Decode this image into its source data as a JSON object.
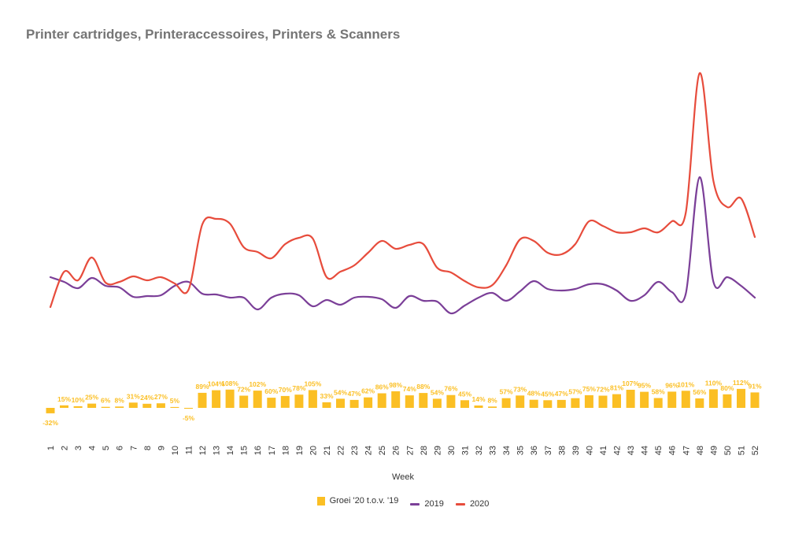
{
  "chart_data": {
    "type": "line",
    "title": "Printer cartridges, Printeraccessoires, Printers & Scanners",
    "xlabel": "Week",
    "ylabel": "",
    "categories": [
      "1",
      "2",
      "3",
      "4",
      "5",
      "6",
      "7",
      "8",
      "9",
      "10",
      "11",
      "12",
      "13",
      "14",
      "15",
      "16",
      "17",
      "18",
      "19",
      "20",
      "21",
      "22",
      "23",
      "24",
      "25",
      "26",
      "27",
      "28",
      "29",
      "30",
      "31",
      "32",
      "33",
      "34",
      "35",
      "36",
      "37",
      "38",
      "39",
      "40",
      "41",
      "42",
      "43",
      "44",
      "45",
      "46",
      "47",
      "48",
      "49",
      "50",
      "51",
      "52"
    ],
    "series": [
      {
        "name": "2019",
        "type": "line",
        "color": "#7b3f98",
        "values": [
          352,
          358,
          366,
          353,
          363,
          365,
          377,
          376,
          375,
          363,
          358,
          373,
          374,
          378,
          378,
          393,
          378,
          373,
          375,
          389,
          381,
          387,
          378,
          377,
          380,
          391,
          376,
          382,
          383,
          398,
          388,
          378,
          372,
          382,
          370,
          357,
          367,
          369,
          367,
          361,
          361,
          369,
          382,
          375,
          358,
          371,
          373,
          225,
          358,
          352,
          363,
          378
        ]
      },
      {
        "name": "2020",
        "type": "line",
        "color": "#e74c3c",
        "values": [
          390,
          345,
          356,
          327,
          359,
          358,
          351,
          356,
          352,
          360,
          368,
          285,
          278,
          284,
          314,
          320,
          328,
          310,
          302,
          303,
          352,
          345,
          337,
          321,
          306,
          316,
          311,
          310,
          340,
          346,
          357,
          365,
          362,
          337,
          304,
          306,
          321,
          323,
          310,
          281,
          287,
          295,
          295,
          290,
          295,
          281,
          270,
          93,
          230,
          263,
          252,
          301
        ]
      },
      {
        "name": "Groei '20 t.o.v. '19",
        "type": "bar",
        "color": "#fbbf24",
        "values": [
          -32,
          15,
          10,
          25,
          6,
          8,
          31,
          24,
          27,
          5,
          -5,
          89,
          104,
          108,
          72,
          102,
          60,
          70,
          78,
          105,
          33,
          54,
          47,
          62,
          86,
          98,
          74,
          88,
          54,
          76,
          45,
          14,
          8,
          57,
          73,
          48,
          45,
          47,
          57,
          75,
          72,
          81,
          107,
          95,
          58,
          96,
          101,
          56,
          110,
          80,
          112,
          91
        ],
        "labels": [
          "-32%",
          "15%",
          "10%",
          "25%",
          "6%",
          "8%",
          "31%",
          "24%",
          "27%",
          "5%",
          "-5%",
          "89%",
          "104%",
          "108%",
          "72%",
          "102%",
          "60%",
          "70%",
          "78%",
          "105%",
          "33%",
          "54%",
          "47%",
          "62%",
          "86%",
          "98%",
          "74%",
          "88%",
          "54%",
          "76%",
          "45%",
          "14%",
          "8%",
          "57%",
          "73%",
          "48%",
          "45%",
          "47%",
          "57%",
          "75%",
          "72%",
          "81%",
          "107%",
          "95%",
          "58%",
          "96%",
          "101%",
          "56%",
          "110%",
          "80%",
          "112%",
          "91%"
        ]
      }
    ],
    "legend": {
      "position": "bottom",
      "items": [
        {
          "label": "Groei '20 t.o.v. '19",
          "color": "#fbbf24",
          "kind": "bar"
        },
        {
          "label": "2019",
          "color": "#7b3f98",
          "kind": "line"
        },
        {
          "label": "2020",
          "color": "#e74c3c",
          "kind": "line"
        }
      ]
    },
    "grid": false
  }
}
